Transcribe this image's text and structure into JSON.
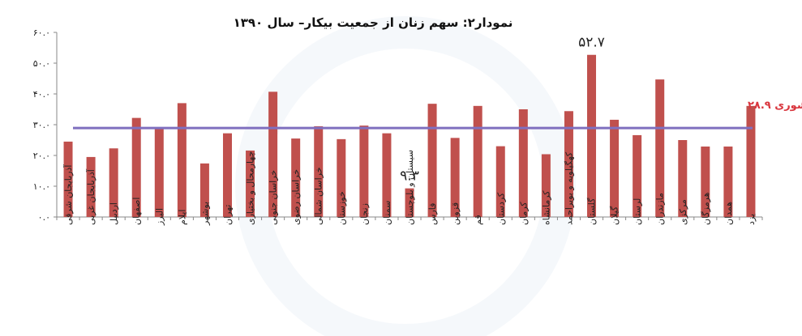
{
  "chart_data": {
    "type": "bar",
    "title": "نمودار۲: سهم زنان از جمعیت بیکار– سال ۱۳۹۰",
    "xlabel": "",
    "ylabel": "",
    "ylim": [
      0,
      60
    ],
    "yticks": [
      0,
      10,
      20,
      30,
      40,
      50,
      60
    ],
    "ytick_labels": [
      "۰.۰",
      "۱۰.۰",
      "۲۰.۰",
      "۳۰.۰",
      "۴۰.۰",
      "۵۰.۰",
      "۶۰.۰"
    ],
    "grid": false,
    "categories": [
      "آذربایجان شرقی",
      "آذربایجان غربی",
      "اردبیل",
      "اصفهان",
      "البرز",
      "ایلام",
      "بوشهر",
      "تهران",
      "چهارمحال و بختیاری",
      "خراسان جنوبی",
      "خراسان رضوی",
      "خراسان شمالی",
      "خوزستان",
      "زنجان",
      "سمنان",
      "سیستان و بلوچستان",
      "فارس",
      "قزوین",
      "قم",
      "کردستان",
      "کرمان",
      "کرمانشاه",
      "کهگیلویه و بویراحمد",
      "گلستان",
      "گیلان",
      "لرستان",
      "مازندران",
      "مرکزی",
      "هرمزگان",
      "همدان",
      "یزد"
    ],
    "values": [
      24.5,
      19.5,
      22.3,
      32.2,
      28.8,
      37.0,
      17.4,
      27.2,
      21.6,
      40.7,
      25.5,
      29.5,
      25.3,
      29.7,
      27.2,
      9.3,
      36.8,
      25.7,
      36.1,
      23.0,
      35.0,
      20.4,
      34.4,
      52.7,
      31.6,
      26.6,
      44.7,
      25.0,
      22.9,
      22.9,
      36.1
    ],
    "bar_color": "#c0504d",
    "reference_line": {
      "value": 28.9,
      "label": "کشوری ۲۸.۹",
      "color": "#7f6fbf",
      "label_color": "#d9363e"
    },
    "annotations": [
      {
        "category_index": 15,
        "text": "۹.۳"
      },
      {
        "category_index": 23,
        "text": "۵۲.۷"
      }
    ]
  }
}
